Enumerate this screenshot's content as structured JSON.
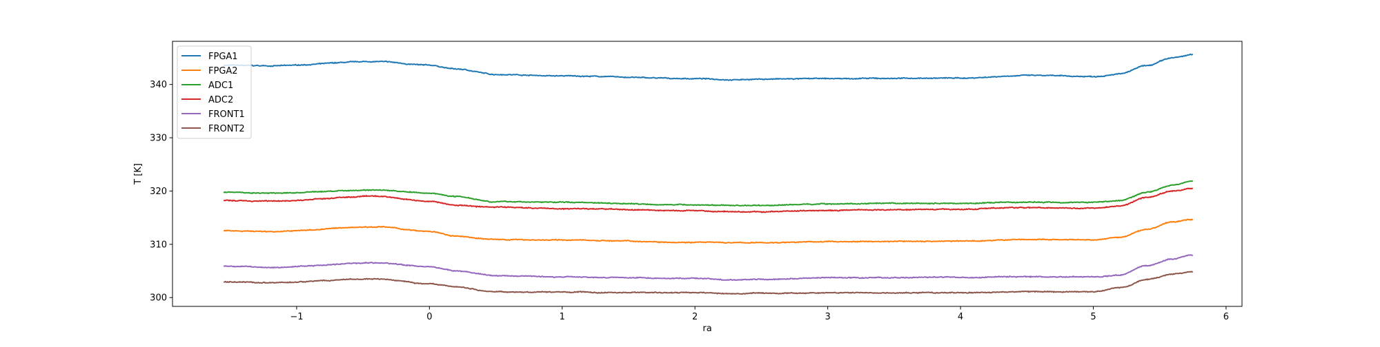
{
  "chart_data": {
    "type": "line",
    "title": "",
    "xlabel": "ra",
    "ylabel": "T [K]",
    "xlim": [
      -1.935,
      6.12
    ],
    "ylim": [
      298.35,
      348.1
    ],
    "xticks": [
      -1,
      0,
      1,
      2,
      3,
      4,
      5,
      6
    ],
    "xtick_labels": [
      "−1",
      "0",
      "1",
      "2",
      "3",
      "4",
      "5",
      "6"
    ],
    "yticks": [
      300,
      310,
      320,
      330,
      340
    ],
    "ytick_labels": [
      "300",
      "310",
      "320",
      "330",
      "340"
    ],
    "grid": false,
    "legend_placement": "upper-left",
    "x": [
      -1.55,
      -1.2,
      -0.4,
      0,
      0.2,
      0.5,
      1,
      2,
      2.3,
      2.5,
      3,
      4,
      4.5,
      5,
      5.2,
      5.4,
      5.6,
      5.75
    ],
    "series": [
      {
        "name": "FPGA1",
        "color": "#1f77b4",
        "values": [
          343.6,
          343.5,
          344.3,
          343.6,
          342.9,
          341.9,
          341.6,
          341.1,
          340.9,
          341.0,
          341.1,
          341.2,
          341.7,
          341.5,
          342.0,
          343.5,
          345.0,
          345.6
        ]
      },
      {
        "name": "FPGA2",
        "color": "#ff7f0e",
        "values": [
          312.6,
          312.4,
          313.3,
          312.4,
          311.5,
          310.9,
          310.8,
          310.4,
          310.3,
          310.3,
          310.5,
          310.6,
          310.9,
          310.8,
          311.3,
          312.8,
          314.2,
          314.7
        ]
      },
      {
        "name": "ADC1",
        "color": "#2ca02c",
        "values": [
          319.8,
          319.6,
          320.2,
          319.6,
          319.0,
          318.0,
          317.9,
          317.4,
          317.3,
          317.3,
          317.6,
          317.7,
          317.9,
          317.9,
          318.2,
          319.8,
          321.1,
          321.9
        ]
      },
      {
        "name": "ADC2",
        "color": "#d62728",
        "values": [
          318.2,
          318.1,
          319.0,
          318.1,
          317.3,
          317.0,
          316.7,
          316.3,
          316.1,
          316.1,
          316.4,
          316.6,
          316.9,
          316.8,
          317.2,
          318.8,
          320.0,
          320.5
        ]
      },
      {
        "name": "FRONT1",
        "color": "#9467bd",
        "values": [
          305.9,
          305.7,
          306.5,
          305.8,
          305.0,
          304.1,
          303.9,
          303.6,
          303.3,
          303.4,
          303.7,
          303.8,
          303.9,
          303.9,
          304.3,
          306.0,
          307.3,
          308.0
        ]
      },
      {
        "name": "FRONT2",
        "color": "#8c564b",
        "values": [
          302.9,
          302.8,
          303.5,
          302.6,
          302.0,
          301.1,
          301.0,
          300.9,
          300.7,
          300.8,
          300.9,
          300.9,
          301.1,
          301.1,
          301.9,
          303.4,
          304.4,
          304.9
        ]
      }
    ]
  }
}
